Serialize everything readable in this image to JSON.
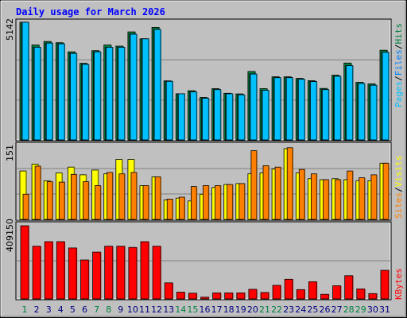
{
  "title": "Daily usage for March 2026",
  "colors": {
    "pages": "#00c0ff",
    "files": "#00e0c0",
    "hits": "#008040",
    "sites": "#ff8000",
    "visits": "#ffff00",
    "kbytes": "#ff0000",
    "weekend_day": "#008040",
    "weekday_day": "#000080"
  },
  "chart_data": [
    {
      "type": "bar",
      "panel": "hits",
      "categories": [
        "1",
        "2",
        "3",
        "4",
        "5",
        "6",
        "7",
        "8",
        "9",
        "10",
        "11",
        "12",
        "13",
        "14",
        "15",
        "16",
        "17",
        "18",
        "19",
        "20",
        "21",
        "22",
        "23",
        "24",
        "25",
        "26",
        "27",
        "28",
        "29",
        "30",
        "31"
      ],
      "y_max_label": "5142",
      "ylim": [
        0,
        5142
      ],
      "right_label": [
        "Pages",
        "Files",
        "Hits"
      ],
      "series": [
        {
          "name": "Hits",
          "values": [
            5142,
            4150,
            4300,
            4250,
            3850,
            3350,
            3900,
            4150,
            4100,
            4720,
            4420,
            4920,
            2580,
            2020,
            2150,
            1860,
            2240,
            2040,
            2010,
            2990,
            2240,
            2760,
            2760,
            2690,
            2590,
            2250,
            2830,
            3360,
            2520,
            2450,
            3920
          ]
        },
        {
          "name": "Files",
          "values": [
            5142,
            4050,
            4230,
            4200,
            3780,
            3300,
            3850,
            4050,
            4050,
            4620,
            4420,
            4830,
            2560,
            2020,
            2100,
            1820,
            2200,
            2020,
            1970,
            2880,
            2170,
            2720,
            2720,
            2650,
            2550,
            2200,
            2780,
            3250,
            2470,
            2390,
            3830
          ]
        },
        {
          "name": "Pages",
          "values": [
            5142,
            4050,
            4230,
            4200,
            3780,
            3300,
            3850,
            4050,
            4050,
            4620,
            4420,
            4830,
            2560,
            2020,
            2100,
            1820,
            2200,
            2020,
            1970,
            2880,
            2170,
            2720,
            2720,
            2650,
            2550,
            2200,
            2780,
            3250,
            2470,
            2390,
            3830
          ]
        }
      ]
    },
    {
      "type": "bar",
      "panel": "visits",
      "categories": [
        "1",
        "2",
        "3",
        "4",
        "5",
        "6",
        "7",
        "8",
        "9",
        "10",
        "11",
        "12",
        "13",
        "14",
        "15",
        "16",
        "17",
        "18",
        "19",
        "20",
        "21",
        "22",
        "23",
        "24",
        "25",
        "26",
        "27",
        "28",
        "29",
        "30",
        "31"
      ],
      "y_max_label": "151",
      "ylim": [
        0,
        151
      ],
      "right_label": [
        "Sites",
        "Visits"
      ],
      "series": [
        {
          "name": "Visits",
          "values": [
            100,
            114,
            80,
            96,
            108,
            92,
            102,
            94,
            124,
            124,
            70,
            88,
            40,
            44,
            38,
            52,
            66,
            72,
            74,
            94,
            96,
            104,
            146,
            96,
            84,
            82,
            84,
            82,
            80,
            80,
            116
          ]
        },
        {
          "name": "Sites",
          "values": [
            52,
            110,
            78,
            77,
            93,
            78,
            70,
            97,
            94,
            97,
            70,
            88,
            42,
            46,
            68,
            70,
            70,
            72,
            74,
            142,
            111,
            108,
            148,
            103,
            94,
            82,
            82,
            100,
            86,
            92,
            116
          ]
        }
      ]
    },
    {
      "type": "bar",
      "panel": "kbytes",
      "categories": [
        "1",
        "2",
        "3",
        "4",
        "5",
        "6",
        "7",
        "8",
        "9",
        "10",
        "11",
        "12",
        "13",
        "14",
        "15",
        "16",
        "17",
        "18",
        "19",
        "20",
        "21",
        "22",
        "23",
        "24",
        "25",
        "26",
        "27",
        "28",
        "29",
        "30",
        "31"
      ],
      "y_max_label": "409150",
      "ylim": [
        0,
        409150
      ],
      "right_label": [
        "KBytes"
      ],
      "series": [
        {
          "name": "KBytes",
          "values": [
            409150,
            295000,
            320000,
            320000,
            285000,
            218000,
            262000,
            295000,
            295000,
            288000,
            320000,
            295000,
            90000,
            38000,
            32000,
            10000,
            34000,
            34000,
            34000,
            54000,
            36000,
            76000,
            110000,
            52000,
            96000,
            26000,
            74000,
            130000,
            56000,
            30000,
            160000
          ]
        }
      ]
    }
  ],
  "days": [
    "1",
    "2",
    "3",
    "4",
    "5",
    "6",
    "7",
    "8",
    "9",
    "10",
    "11",
    "12",
    "13",
    "14",
    "15",
    "16",
    "17",
    "18",
    "19",
    "20",
    "21",
    "22",
    "23",
    "24",
    "25",
    "26",
    "27",
    "28",
    "29",
    "30",
    "31"
  ],
  "weekend_days": [
    1,
    7,
    8,
    14,
    15,
    21,
    22,
    28,
    29
  ]
}
